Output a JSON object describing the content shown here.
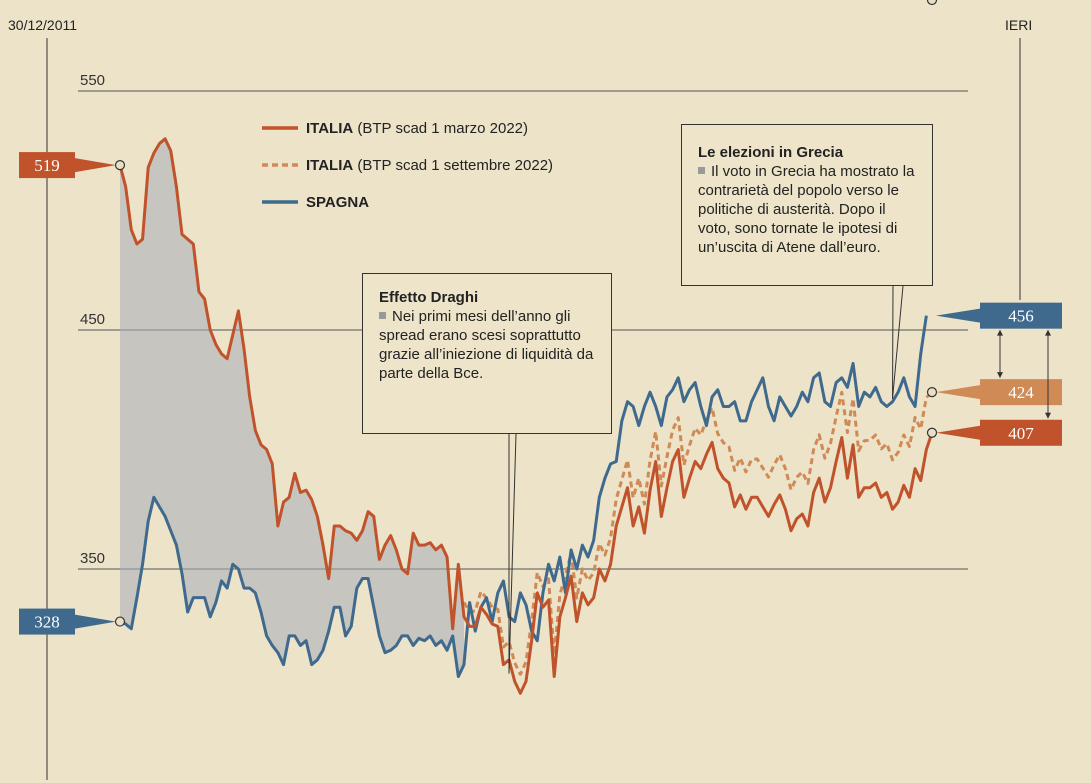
{
  "chart_data": {
    "type": "line",
    "start_label": "30/12/2011",
    "end_label": "IERI",
    "y_ticks": [
      350,
      450,
      550
    ],
    "ylim": [
      230,
      570
    ],
    "series": [
      {
        "name": "ITALIA",
        "detail": "(BTP scad 1 marzo 2022)",
        "style": "solid",
        "color": "#c0532b",
        "values": [
          519,
          510,
          492,
          486,
          488,
          518,
          524,
          528,
          530,
          525,
          510,
          490,
          488,
          486,
          466,
          463,
          450,
          444,
          440,
          438,
          448,
          458,
          442,
          422,
          408,
          402,
          400,
          394,
          368,
          378,
          380,
          390,
          382,
          383,
          379,
          372,
          360,
          346,
          368,
          368,
          366,
          365,
          362,
          366,
          374,
          372,
          354,
          360,
          364,
          358,
          350,
          348,
          365,
          360,
          360,
          361,
          358,
          360,
          355,
          325,
          352,
          330,
          326,
          326,
          334,
          331,
          327,
          326,
          310,
          312,
          303,
          298,
          303,
          320,
          340,
          334,
          337,
          305,
          330,
          338,
          347,
          328,
          340,
          335,
          338,
          350,
          345,
          352,
          368,
          376,
          384,
          368,
          376,
          365,
          383,
          395,
          372,
          384,
          395,
          400,
          380,
          388,
          395,
          392,
          398,
          403,
          392,
          388,
          386,
          376,
          381,
          375,
          380,
          380,
          376,
          372,
          377,
          381,
          375,
          366,
          371,
          373,
          368,
          382,
          388,
          378,
          384,
          395,
          405,
          388,
          402,
          380,
          384,
          384,
          386,
          380,
          382,
          375,
          378,
          385,
          380,
          392,
          387,
          400,
          407
        ]
      },
      {
        "name": "ITALIA",
        "detail": "(BTP scad 1 settembre 2022)",
        "style": "dashed",
        "color": "#cf8a55",
        "values": [
          null,
          null,
          null,
          null,
          null,
          null,
          null,
          null,
          null,
          null,
          null,
          null,
          null,
          null,
          null,
          null,
          null,
          null,
          null,
          null,
          null,
          null,
          null,
          null,
          null,
          null,
          null,
          null,
          null,
          null,
          null,
          null,
          null,
          null,
          null,
          null,
          null,
          null,
          null,
          null,
          null,
          null,
          null,
          null,
          null,
          null,
          null,
          null,
          null,
          null,
          null,
          null,
          null,
          null,
          null,
          null,
          null,
          null,
          null,
          null,
          null,
          null,
          null,
          null,
          null,
          null,
          null,
          null,
          null,
          null,
          null,
          null,
          null,
          null,
          null,
          null,
          null,
          null,
          null,
          null,
          null,
          null,
          null,
          null,
          null,
          null,
          null,
          null,
          null,
          null,
          null,
          null,
          null,
          null,
          null,
          null,
          null,
          null,
          null,
          null,
          null,
          null,
          null,
          null,
          null,
          null,
          null,
          null,
          null,
          null,
          null,
          null,
          null,
          null,
          null,
          null,
          null,
          null,
          null,
          null,
          null,
          null,
          null,
          null,
          null,
          null,
          null,
          null,
          null,
          null,
          null,
          null,
          null,
          null,
          null,
          null,
          null,
          null,
          null,
          null,
          null,
          null,
          null,
          null,
          424
        ]
      },
      {
        "name": "SPAGNA",
        "detail": "",
        "style": "solid",
        "color": "#3f6a8e",
        "values": [
          328,
          327,
          325,
          338,
          352,
          370,
          380,
          376,
          372,
          366,
          360,
          348,
          332,
          338,
          338,
          338,
          330,
          336,
          345,
          342,
          352,
          350,
          342,
          342,
          340,
          332,
          322,
          318,
          315,
          310,
          322,
          322,
          318,
          320,
          310,
          312,
          316,
          324,
          334,
          334,
          322,
          326,
          342,
          346,
          346,
          334,
          322,
          315,
          316,
          318,
          322,
          322,
          318,
          321,
          320,
          322,
          318,
          320,
          316,
          322,
          305,
          310,
          336,
          324,
          334,
          338,
          328,
          340,
          345,
          330,
          328,
          340,
          335,
          324,
          320,
          340,
          352,
          345,
          355,
          340,
          358,
          350,
          360,
          355,
          362,
          380,
          388,
          394,
          395,
          412,
          420,
          418,
          410,
          418,
          424,
          418,
          410,
          422,
          425,
          430,
          420,
          425,
          428,
          418,
          410,
          422,
          425,
          418,
          418,
          420,
          412,
          412,
          420,
          425,
          430,
          418,
          412,
          422,
          418,
          414,
          418,
          424,
          420,
          430,
          432,
          420,
          418,
          428,
          430,
          426,
          436,
          418,
          424,
          422,
          426,
          420,
          418,
          420,
          424,
          430,
          422,
          418,
          440,
          456
        ]
      }
    ],
    "reference_values": {
      "italia_start": 519,
      "spagna_start": 328,
      "spagna_end": 456,
      "italia_settembre_end": 424,
      "italia_marzo_end": 407
    },
    "annotations": [
      {
        "title": "Effetto Draghi",
        "text": "Nei primi mesi dell’anno gli spread erano scesi soprattutto grazie all’iniezione di liquidità da parte della Bce."
      },
      {
        "title": "Le elezioni in Grecia",
        "text": "Il voto in Grecia ha mostrato la contrarietà del popolo verso le politiche di austerità. Dopo il voto, sono tornate le ipotesi di un’uscita di Atene dall’euro."
      }
    ],
    "flags": [
      {
        "label": "519",
        "color": "#c0532b"
      },
      {
        "label": "328",
        "color": "#3f6a8e"
      },
      {
        "label": "456",
        "color": "#3f6a8e"
      },
      {
        "label": "424",
        "color": "#cf8a55"
      },
      {
        "label": "407",
        "color": "#c0532b"
      }
    ]
  }
}
